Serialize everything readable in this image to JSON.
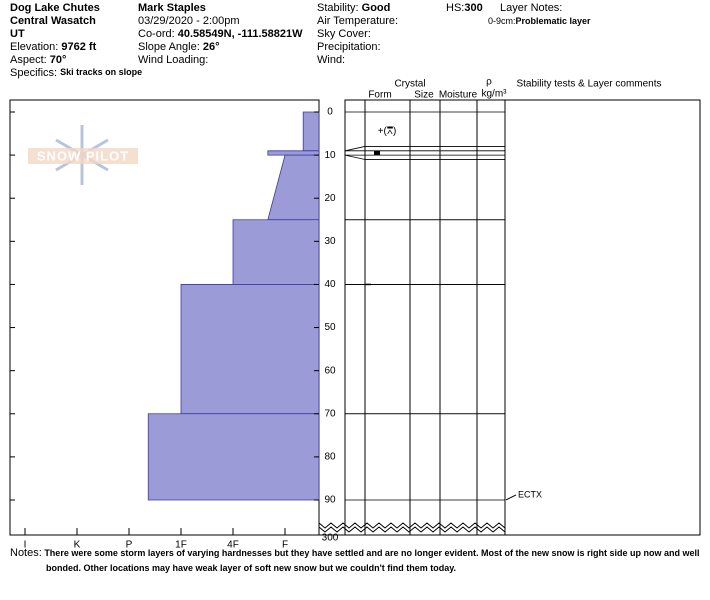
{
  "location": {
    "name": "Dog Lake Chutes",
    "range": "Central Wasatch",
    "state": "UT",
    "elevation_label": "Elevation:",
    "elevation": "9762 ft",
    "aspect_label": "Aspect:",
    "aspect": "70°",
    "specifics_label": "Specifics:",
    "specifics": "Ski tracks on slope"
  },
  "observer": {
    "name": "Mark Staples",
    "datetime": "03/29/2020 - 2:00pm",
    "coord_label": "Co-ord:",
    "coord": "40.58549N, -111.58821W",
    "slope_label": "Slope Angle:",
    "slope": "26°",
    "wind_loading_label": "Wind Loading:"
  },
  "conditions": {
    "stability_label": "Stability:",
    "stability": "Good",
    "air_temp_label": "Air Temperature:",
    "sky_label": "Sky Cover:",
    "precip_label": "Precipitation:",
    "wind_label": "Wind:"
  },
  "hs": {
    "label": "HS:",
    "value": 300
  },
  "layer_notes": {
    "title": "Layer Notes:",
    "items": [
      {
        "range": "0-9cm:",
        "text": "Problematic layer"
      }
    ]
  },
  "logo": "SNOW PILOT",
  "columns": {
    "crystal": "Crystal",
    "form": "Form",
    "size": "Size",
    "moisture": "Moisture",
    "density_symbol": "ρ",
    "density_unit": "kg/m³",
    "comments": "Stability tests & Layer comments"
  },
  "hardness_axis": {
    "ticks": [
      {
        "value": 6,
        "label": "I"
      },
      {
        "value": 5,
        "label": "K"
      },
      {
        "value": 4,
        "label": "P"
      },
      {
        "value": 3,
        "label": "1F"
      },
      {
        "value": 2,
        "label": "4F"
      },
      {
        "value": 1,
        "label": "F"
      }
    ]
  },
  "depth_axis": {
    "ticks": [
      0,
      10,
      20,
      30,
      40,
      50,
      60,
      70,
      80,
      90
    ],
    "break_tick": 300
  },
  "layers": [
    {
      "top": 0,
      "bottom": 9,
      "hardness_top": 0.65,
      "hardness_bottom": 0.65,
      "form": "+(⩞)"
    },
    {
      "top": 9,
      "bottom": 10,
      "hardness_top": 1.33,
      "hardness_bottom": 1.33
    },
    {
      "top": 10,
      "bottom": 25,
      "hardness_top": 1.0,
      "hardness_bottom": 1.33
    },
    {
      "top": 25,
      "bottom": 40,
      "hardness_top": 2,
      "hardness_bottom": 2
    },
    {
      "top": 40,
      "bottom": 70,
      "hardness_top": 3,
      "hardness_bottom": 3
    },
    {
      "top": 70,
      "bottom": 90,
      "hardness_top": 3.63,
      "hardness_bottom": 3.63
    }
  ],
  "tests": [
    {
      "depth": 90,
      "label": "ECTX"
    }
  ],
  "notes": {
    "label": "Notes:",
    "text": "There were some storm layers of varying hardnesses but they have settled and are no longer evident. Most of the new snow is right side up now and well bonded. Other locations may have weak layer of soft new snow but we couldn't find them today."
  }
}
